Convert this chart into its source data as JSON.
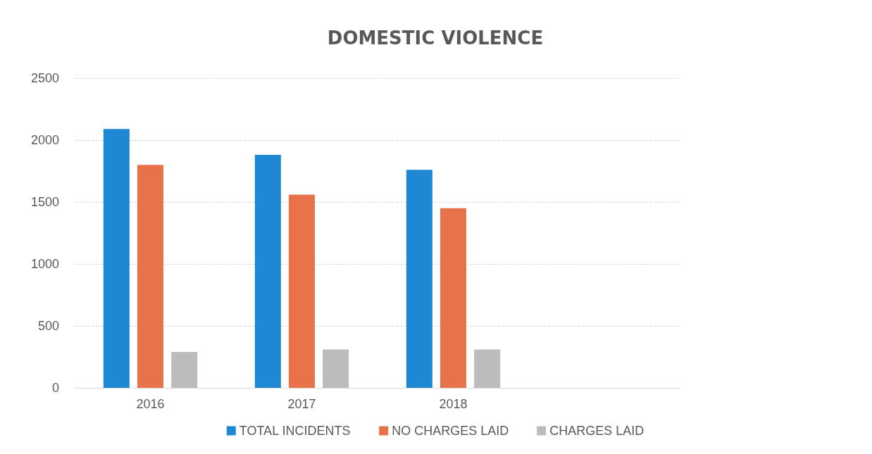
{
  "chart_data": {
    "type": "bar",
    "title": "DOMESTIC VIOLENCE",
    "categories": [
      "2016",
      "2017",
      "2018",
      null
    ],
    "series": [
      {
        "name": "TOTAL INCIDENTS",
        "color": "#1f88d4",
        "values": [
          2090,
          1880,
          1760,
          null
        ]
      },
      {
        "name": "NO CHARGES LAID",
        "color": "#e8734a",
        "values": [
          1800,
          1560,
          1450,
          null
        ]
      },
      {
        "name": "CHARGES LAID",
        "color": "#bcbcbc",
        "values": [
          290,
          310,
          310,
          null
        ]
      }
    ],
    "ylim": [
      0,
      2500
    ],
    "yticks": [
      0,
      500,
      1000,
      1500,
      2000,
      2500
    ],
    "grid": "y",
    "legend": "bottom"
  }
}
